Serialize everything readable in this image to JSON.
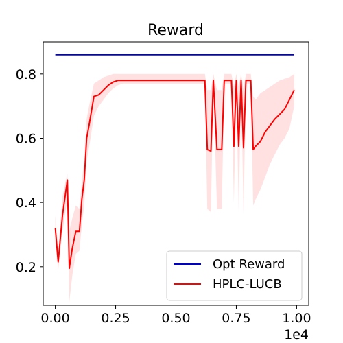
{
  "chart_data": {
    "type": "line",
    "title": "Reward",
    "xlabel": "",
    "ylabel": "",
    "x_offset_label": "1e4",
    "xlim": [
      -0.05,
      1.05
    ],
    "ylim": [
      0.08,
      0.9
    ],
    "x_ticks": [
      0.0,
      0.25,
      0.5,
      0.75,
      1.0
    ],
    "x_tick_labels": [
      "0.00",
      "0.25",
      "0.50",
      "0.75",
      "1.00"
    ],
    "y_ticks": [
      0.2,
      0.4,
      0.6,
      0.8
    ],
    "y_tick_labels": [
      "0.2",
      "0.4",
      "0.6",
      "0.8"
    ],
    "grid": false,
    "legend_position": "lower-right",
    "series": [
      {
        "name": "Opt Reward",
        "color": "#0000cc",
        "x": [
          0.0,
          0.99
        ],
        "y": [
          0.86,
          0.86
        ]
      },
      {
        "name": "HPLC-LUCB",
        "color": "#ff0000",
        "band_color": "#ffb3b3",
        "x": [
          0.0,
          0.012,
          0.03,
          0.05,
          0.058,
          0.07,
          0.085,
          0.1,
          0.11,
          0.12,
          0.13,
          0.14,
          0.16,
          0.18,
          0.2,
          0.22,
          0.24,
          0.26,
          0.28,
          0.3,
          0.35,
          0.4,
          0.45,
          0.5,
          0.55,
          0.6,
          0.62,
          0.63,
          0.645,
          0.655,
          0.67,
          0.69,
          0.7,
          0.72,
          0.73,
          0.74,
          0.75,
          0.76,
          0.77,
          0.78,
          0.79,
          0.8,
          0.81,
          0.82,
          0.83,
          0.85,
          0.87,
          0.89,
          0.91,
          0.93,
          0.95,
          0.97,
          0.99
        ],
        "y": [
          0.32,
          0.215,
          0.36,
          0.47,
          0.195,
          0.255,
          0.31,
          0.31,
          0.41,
          0.47,
          0.6,
          0.64,
          0.73,
          0.735,
          0.75,
          0.765,
          0.775,
          0.78,
          0.78,
          0.78,
          0.78,
          0.78,
          0.78,
          0.78,
          0.78,
          0.78,
          0.78,
          0.565,
          0.56,
          0.78,
          0.565,
          0.565,
          0.78,
          0.78,
          0.78,
          0.575,
          0.78,
          0.575,
          0.78,
          0.57,
          0.78,
          0.78,
          0.78,
          0.565,
          0.575,
          0.59,
          0.62,
          0.64,
          0.66,
          0.675,
          0.69,
          0.72,
          0.75
        ],
        "lower": [
          0.28,
          0.19,
          0.31,
          0.41,
          0.09,
          0.17,
          0.24,
          0.25,
          0.33,
          0.39,
          0.53,
          0.57,
          0.67,
          0.7,
          0.72,
          0.74,
          0.755,
          0.765,
          0.77,
          0.77,
          0.77,
          0.77,
          0.77,
          0.77,
          0.77,
          0.77,
          0.77,
          0.38,
          0.37,
          0.77,
          0.38,
          0.38,
          0.77,
          0.77,
          0.77,
          0.4,
          0.77,
          0.37,
          0.77,
          0.36,
          0.77,
          0.77,
          0.77,
          0.39,
          0.41,
          0.44,
          0.48,
          0.52,
          0.55,
          0.58,
          0.6,
          0.63,
          0.7
        ],
        "upper": [
          0.36,
          0.25,
          0.42,
          0.49,
          0.31,
          0.35,
          0.39,
          0.38,
          0.47,
          0.53,
          0.66,
          0.7,
          0.77,
          0.78,
          0.79,
          0.795,
          0.8,
          0.8,
          0.8,
          0.8,
          0.8,
          0.8,
          0.8,
          0.8,
          0.8,
          0.8,
          0.8,
          0.75,
          0.75,
          0.8,
          0.75,
          0.75,
          0.8,
          0.8,
          0.8,
          0.76,
          0.8,
          0.76,
          0.8,
          0.75,
          0.8,
          0.8,
          0.8,
          0.73,
          0.72,
          0.74,
          0.75,
          0.76,
          0.77,
          0.78,
          0.785,
          0.79,
          0.8
        ]
      }
    ]
  }
}
